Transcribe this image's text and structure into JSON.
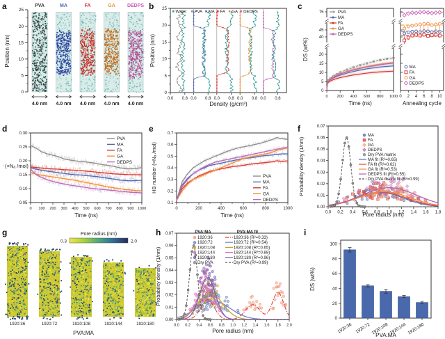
{
  "panels": {
    "a": {
      "letter": "a"
    },
    "b": {
      "letter": "b"
    },
    "c": {
      "letter": "c"
    },
    "d": {
      "letter": "d"
    },
    "e": {
      "letter": "e"
    },
    "f": {
      "letter": "f"
    },
    "g": {
      "letter": "g"
    },
    "h": {
      "letter": "h"
    },
    "i": {
      "letter": "i"
    }
  },
  "colors": {
    "axis": "#333333",
    "water": "#2E9A93",
    "pva": "#8C8C8C",
    "ma": "#4F66B0",
    "fa": "#D6372F",
    "ga": "#EF8F3C",
    "dedps": "#BA6AB4",
    "bar": "#4A69AD"
  },
  "chart_data": [
    {
      "id": "a",
      "type": "md-snapshots",
      "ylabel": "Position (nm)",
      "yticks": [
        "0",
        "5",
        "10",
        "15",
        "20",
        "25"
      ],
      "scale_label": "4.0 nm",
      "columns": [
        {
          "label": "PVA",
          "label_color": "#3A3A3A",
          "dot": "#2F3A38",
          "dot2": "#55625F",
          "band": null
        },
        {
          "label": "MA",
          "label_color": "#4F66B0",
          "dot": "#2B3F9B",
          "dot2": "#5A6FC0",
          "band": [
            5.5,
            18.5
          ]
        },
        {
          "label": "FA",
          "label_color": "#D6372F",
          "dot": "#C22F28",
          "dot2": "#E06A55",
          "band": [
            5.5,
            19
          ]
        },
        {
          "label": "GA",
          "label_color": "#EF8F3C",
          "dot": "#BF6A1E",
          "dot2": "#E89A50",
          "band": [
            5.5,
            19
          ]
        },
        {
          "label": "DEDPS",
          "label_color": "#C95FB5",
          "dot": "#B04E93",
          "dot2": "#D07EB6",
          "band": [
            4.5,
            18.5
          ]
        }
      ]
    },
    {
      "id": "b",
      "type": "density-profiles",
      "ylabel": "Position (nm)",
      "xlabel": "Density (g/cm³)",
      "yticks": [
        "0",
        "5",
        "10",
        "15",
        "20",
        "25"
      ],
      "xticks": [
        "0.0",
        "0.8"
      ],
      "legend": [
        "Water",
        "PVA",
        "MA",
        "FA",
        "GA",
        "DEDPS"
      ],
      "legend_colors": [
        "#2E9A93",
        "#8C8C8C",
        "#4F66B0",
        "#D6372F",
        "#EF8F3C",
        "#C95FB5"
      ],
      "subpanels": [
        {
          "name": "PVA",
          "color": "#8C8C8C",
          "band": null,
          "solute": 0.5,
          "water_out": 0.72,
          "water_in": 0.72
        },
        {
          "name": "MA",
          "color": "#4F66B0",
          "band": [
            5,
            19
          ],
          "solute": 0.55,
          "water_out": 0.82,
          "water_in": 0.58
        },
        {
          "name": "FA",
          "color": "#D6372F",
          "band": [
            6,
            19
          ],
          "solute": 0.6,
          "water_out": 0.82,
          "water_in": 0.55
        },
        {
          "name": "GA",
          "color": "#EF8F3C",
          "band": [
            5.5,
            19
          ],
          "solute": 0.55,
          "water_out": 0.82,
          "water_in": 0.58
        },
        {
          "name": "DEDPS",
          "color": "#C95FB5",
          "band": [
            4.5,
            18.5
          ],
          "solute": 0.55,
          "water_out": 0.82,
          "water_in": 0.6
        }
      ]
    },
    {
      "id": "c_time",
      "type": "line",
      "xlabel": "Time (ns)",
      "ylabel": "DS (wt%)",
      "xticks": [
        "0",
        "200",
        "400",
        "600",
        "800",
        "1000"
      ],
      "ytick_groups": [
        [
          "0",
          "5",
          "10",
          "15",
          "20"
        ],
        [
          "40",
          "45"
        ],
        [
          "75"
        ]
      ],
      "x": [
        0,
        10,
        25,
        50,
        100,
        150,
        200,
        300,
        400,
        500,
        600,
        700,
        800,
        900,
        1000
      ],
      "series": [
        {
          "name": "PVA",
          "color": "#8C8C8C",
          "style": "dashed",
          "values": [
            0,
            4.6,
            5.6,
            6.6,
            8,
            9,
            10,
            11.5,
            12.8,
            14,
            15,
            16,
            16.8,
            17.5,
            18
          ]
        },
        {
          "name": "MA",
          "color": "#4F66B0",
          "values": [
            0,
            4.2,
            5,
            5.8,
            7,
            7.8,
            8.5,
            9.6,
            10.5,
            11.3,
            12,
            12.5,
            13,
            13.3,
            13.6
          ]
        },
        {
          "name": "FA",
          "color": "#D6372F",
          "values": [
            0,
            3.8,
            4.5,
            5.2,
            6,
            6.6,
            7.1,
            7.9,
            8.6,
            9.1,
            9.6,
            10,
            10.3,
            10.5,
            10.7
          ]
        },
        {
          "name": "GA",
          "color": "#EF8F3C",
          "values": [
            0,
            4.5,
            5.3,
            6.2,
            7.5,
            8.4,
            9.2,
            10.5,
            11.6,
            12.5,
            13.3,
            14,
            14.6,
            15.1,
            15.5
          ]
        },
        {
          "name": "DEDPS",
          "color": "#BA6AB4",
          "values": [
            0,
            4.3,
            5.1,
            6,
            7.3,
            8.2,
            9,
            10.3,
            11.3,
            12.2,
            13,
            13.6,
            14.2,
            14.7,
            15.1
          ]
        }
      ]
    },
    {
      "id": "c_anneal",
      "type": "scatter",
      "xlabel": "Annealing cycle",
      "xticks": [
        "0",
        "2",
        "4",
        "6",
        "8",
        "10"
      ],
      "cycles": [
        1,
        2,
        3,
        4,
        5,
        6,
        7,
        8,
        9,
        10
      ],
      "series": [
        {
          "name": "MA",
          "marker": "circle",
          "color": "#4F66B0",
          "mean": 44,
          "values": [
            42.5,
            43.2,
            43.8,
            44,
            43.6,
            44.2,
            44,
            43.5,
            44.1,
            43.8
          ],
          "err": 1.2
        },
        {
          "name": "FA",
          "marker": "square",
          "color": "#D6372F",
          "mean": 41.3,
          "values": [
            37.5,
            39.5,
            41,
            41.5,
            41,
            41.6,
            40.8,
            41.2,
            41.5,
            41
          ],
          "err": 1.5
        },
        {
          "name": "GA",
          "marker": "circle",
          "color": "#EF8F3C",
          "mean": 48.5,
          "values": [
            46,
            47.5,
            48,
            48.5,
            49,
            49.3,
            49.5,
            48.5,
            49,
            49.4
          ],
          "err": 1.3
        },
        {
          "name": "DEDPS",
          "marker": "diamond",
          "color": "#C95FB5",
          "mean": 74.1,
          "values": [
            71,
            73,
            74,
            73.6,
            74.5,
            74.8,
            74.2,
            73.4,
            74,
            74.4
          ],
          "err": 1.2
        }
      ]
    },
    {
      "id": "d",
      "type": "noisy-lines",
      "xlabel": "Time (ns)",
      "ylabel": "HB number (×Nₐ /mol)",
      "xticks": [
        "0",
        "100",
        "200",
        "300",
        "400",
        "500",
        "600",
        "700",
        "800",
        "900",
        "1000"
      ],
      "yticks": [
        "0.05",
        "0.10",
        "0.15",
        "0.20",
        "0.25",
        "0.30"
      ],
      "ylim": [
        0.05,
        0.3
      ],
      "x_step": 50,
      "series": [
        {
          "name": "PVA",
          "color": "#8C8C8C",
          "values": [
            0.255,
            0.245,
            0.232,
            0.225,
            0.22,
            0.215,
            0.207,
            0.203,
            0.2,
            0.197,
            0.196,
            0.193,
            0.19,
            0.186,
            0.183,
            0.18,
            0.175,
            0.172,
            0.171,
            0.173,
            0.175
          ]
        },
        {
          "name": "MA",
          "color": "#4F66B0",
          "values": [
            0.175,
            0.17,
            0.166,
            0.163,
            0.16,
            0.157,
            0.155,
            0.152,
            0.15,
            0.149,
            0.147,
            0.145,
            0.143,
            0.14,
            0.137,
            0.134,
            0.131,
            0.129,
            0.128,
            0.129,
            0.13
          ]
        },
        {
          "name": "FA",
          "color": "#D6372F",
          "values": [
            0.178,
            0.176,
            0.174,
            0.172,
            0.171,
            0.17,
            0.168,
            0.167,
            0.166,
            0.165,
            0.163,
            0.161,
            0.159,
            0.157,
            0.155,
            0.153,
            0.152,
            0.151,
            0.15,
            0.15,
            0.15
          ]
        },
        {
          "name": "GA",
          "color": "#EF8F3C",
          "values": [
            0.158,
            0.152,
            0.148,
            0.145,
            0.142,
            0.139,
            0.136,
            0.133,
            0.13,
            0.126,
            0.122,
            0.118,
            0.114,
            0.11,
            0.106,
            0.103,
            0.1,
            0.097,
            0.095,
            0.093,
            0.092
          ]
        },
        {
          "name": "DEDPS",
          "color": "#BA6AB4",
          "values": [
            0.17,
            0.15,
            0.14,
            0.132,
            0.126,
            0.121,
            0.117,
            0.113,
            0.11,
            0.107,
            0.104,
            0.101,
            0.099,
            0.097,
            0.095,
            0.093,
            0.091,
            0.089,
            0.087,
            0.086,
            0.085
          ]
        }
      ]
    },
    {
      "id": "e",
      "type": "noisy-lines",
      "xlabel": "Time (ns)",
      "ylabel": "HB number (×Nₐ /mol)",
      "xticks": [
        "0",
        "200",
        "400",
        "600",
        "800",
        "1000"
      ],
      "yticks": [
        "0.1",
        "0.2",
        "0.3",
        "0.4",
        "0.5",
        "0.6",
        "0.7"
      ],
      "ylim": [
        0.1,
        0.7
      ],
      "x_step": 50,
      "series": [
        {
          "name": "PVA",
          "color": "#8C8C8C",
          "values": [
            0.12,
            0.28,
            0.35,
            0.4,
            0.43,
            0.46,
            0.48,
            0.5,
            0.52,
            0.54,
            0.555,
            0.57,
            0.58,
            0.59,
            0.6,
            0.61,
            0.625,
            0.64,
            0.66,
            0.65,
            0.645
          ]
        },
        {
          "name": "MA",
          "color": "#4F66B0",
          "values": [
            0.12,
            0.25,
            0.31,
            0.35,
            0.38,
            0.4,
            0.42,
            0.43,
            0.44,
            0.45,
            0.46,
            0.47,
            0.48,
            0.485,
            0.49,
            0.5,
            0.505,
            0.51,
            0.515,
            0.52,
            0.52
          ]
        },
        {
          "name": "FA",
          "color": "#D6372F",
          "values": [
            0.12,
            0.22,
            0.27,
            0.3,
            0.33,
            0.35,
            0.37,
            0.38,
            0.39,
            0.4,
            0.41,
            0.415,
            0.42,
            0.43,
            0.435,
            0.44,
            0.445,
            0.45,
            0.46,
            0.455,
            0.46
          ]
        },
        {
          "name": "GA",
          "color": "#EF8F3C",
          "values": [
            0.12,
            0.2,
            0.26,
            0.3,
            0.32,
            0.34,
            0.36,
            0.38,
            0.4,
            0.42,
            0.44,
            0.46,
            0.48,
            0.49,
            0.5,
            0.51,
            0.52,
            0.53,
            0.55,
            0.56,
            0.575
          ]
        },
        {
          "name": "DEDPS",
          "color": "#BA6AB4",
          "values": [
            0.12,
            0.24,
            0.3,
            0.35,
            0.38,
            0.41,
            0.43,
            0.45,
            0.46,
            0.47,
            0.48,
            0.49,
            0.5,
            0.51,
            0.52,
            0.53,
            0.54,
            0.55,
            0.56,
            0.57,
            0.575
          ]
        }
      ]
    },
    {
      "id": "f",
      "type": "pore-distribution",
      "xlabel": "Pore radius (nm)",
      "ylabel": "Probability density (1/nm)",
      "xticks": [
        "0.0",
        "0.2",
        "0.4",
        "0.6",
        "0.8",
        "1.0",
        "1.2",
        "1.4",
        "1.6",
        "1.8"
      ],
      "yticks": [
        "0.00",
        "0.01",
        "0.02",
        "0.03",
        "0.04",
        "0.05",
        "0.06",
        "0.07"
      ],
      "xlim": [
        0,
        1.8
      ],
      "ylim": [
        0,
        0.07
      ],
      "series": [
        {
          "name": "MA",
          "marker": "circle",
          "color": "#5A6FB8",
          "gaussians": [
            [
              0.85,
              0.38,
              0.0125
            ]
          ],
          "fit_label": "MA fit (R²=0.65)"
        },
        {
          "name": "FA",
          "marker": "square",
          "color": "#E04A38",
          "gaussians": [
            [
              0.88,
              0.4,
              0.0125
            ]
          ],
          "fit_label": "FA fit (R²=0.62)"
        },
        {
          "name": "GA",
          "marker": "diamond",
          "color": "#F2B27C",
          "line_color": "#F08A3C",
          "gaussians": [
            [
              0.92,
              0.42,
              0.013
            ]
          ],
          "fit_label": "GA fit (R²=0.53)"
        },
        {
          "name": "DEDPS",
          "marker": "diamond",
          "color": "#C77BB8",
          "line_color": "#B75FA8",
          "gaussians": [
            [
              1.0,
              0.45,
              0.0165
            ]
          ],
          "fit_label": "DEDPS fit (R²=0.55)"
        },
        {
          "name": "Dry PVA matrix",
          "marker": "circle",
          "color": "#8A8A8A",
          "dry": true,
          "gaussians": [
            [
              0.3,
              0.07,
              0.06
            ]
          ],
          "fit_label": "Dry PVA matrix fit (R²=0.99)"
        }
      ]
    },
    {
      "id": "g",
      "type": "pore-snapshots",
      "colorbar": {
        "title": "Pore radius (nm)",
        "min": "0.3",
        "max": "2.0"
      },
      "labels": [
        "1920:36",
        "1920:72",
        "1920:108",
        "1920:144",
        "1920:180"
      ],
      "xlabel": "PVA:MA"
    },
    {
      "id": "h",
      "type": "pore-distribution",
      "xlabel": "Pore radius (nm)",
      "ylabel": "Probability density (1/nm)",
      "xticks": [
        "0.0",
        "0.2",
        "0.4",
        "0.6",
        "0.8",
        "1.0",
        "1.2",
        "1.4",
        "1.6",
        "1.8",
        "2.0"
      ],
      "yticks": [
        "0.00",
        "0.01",
        "0.02",
        "0.03",
        "0.04",
        "0.05",
        "0.06",
        "0.07"
      ],
      "xlim": [
        0,
        2.0
      ],
      "ylim": [
        0,
        0.07
      ],
      "legend_headers": [
        "PVA:MA",
        "PVA:MA fit"
      ],
      "series": [
        {
          "name": "1920:36",
          "marker": "circle",
          "color": "#F29B80",
          "line_color": "#E03B2F",
          "style": "dashdot",
          "gaussians": [
            [
              0.55,
              0.12,
              0.016
            ],
            [
              1.35,
              0.13,
              0.012
            ],
            [
              1.8,
              0.1,
              0.022
            ]
          ],
          "fit_label": "1920:36 (R²=0.33)"
        },
        {
          "name": "1920:72",
          "marker": "circle",
          "color": "#6F83C2",
          "gaussians": [
            [
              0.65,
              0.3,
              0.015
            ]
          ],
          "fit_label": "1920:72 (R²=0.54)"
        },
        {
          "name": "1920:108",
          "marker": "circle",
          "color": "#C3A233",
          "gaussians": [
            [
              0.6,
              0.22,
              0.021
            ]
          ],
          "fit_label": "1920:108 (R²=0.65)"
        },
        {
          "name": "1920:144",
          "marker": "circle",
          "color": "#D66FB4",
          "gaussians": [
            [
              0.52,
              0.16,
              0.026
            ]
          ],
          "fit_label": "1920:144 (R²=0.88)"
        },
        {
          "name": "1920:180",
          "marker": "circle",
          "color": "#7A5FAD",
          "gaussians": [
            [
              0.55,
              0.14,
              0.034
            ]
          ],
          "fit_label": "1920:180 (R²=0.96)"
        },
        {
          "name": "Dry PVA",
          "marker": "circle",
          "color": "#8A8A8A",
          "style": "dashed",
          "dry": true,
          "gaussians": [
            [
              0.3,
              0.07,
              0.06
            ]
          ],
          "fit_label": "Dry PVA (R²=0.99)"
        }
      ]
    },
    {
      "id": "i",
      "type": "bar",
      "xlabel": "PVA:MA",
      "ylabel": "DS (wt%)",
      "yticks": [
        "0",
        "20",
        "40",
        "60",
        "80",
        "100"
      ],
      "ylim": [
        0,
        105
      ],
      "categories": [
        "1920:36",
        "1920:72",
        "1920:108",
        "1920:144",
        "1920:180"
      ],
      "values": [
        92,
        43.5,
        36,
        29,
        21
      ],
      "errors": [
        3,
        1.5,
        2.5,
        1.5,
        1.5
      ],
      "bar_color": "#4A69AD"
    }
  ]
}
